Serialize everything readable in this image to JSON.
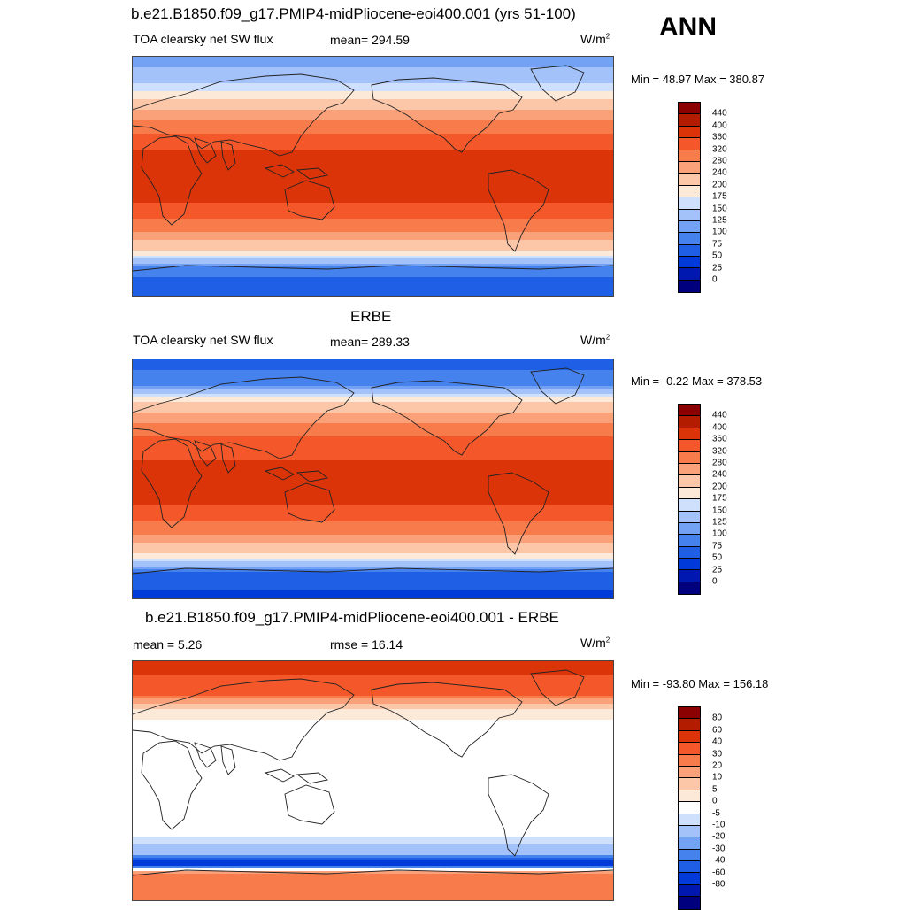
{
  "ann_label": "ANN",
  "palettes": {
    "flux": [
      "#00007f",
      "#0017b0",
      "#003ad9",
      "#1f5fe6",
      "#4682ee",
      "#73a2f5",
      "#a3c2fa",
      "#cfe0fc",
      "#fde9d8",
      "#fcc7a9",
      "#fba17a",
      "#f87b4c",
      "#f4582a",
      "#dc3409",
      "#b41c00",
      "#8b0000"
    ],
    "diff": [
      "#00007f",
      "#0017b0",
      "#003ad9",
      "#1f5fe6",
      "#4682ee",
      "#73a2f5",
      "#a3c2fa",
      "#cfe0fc",
      "#ffffff",
      "#fde9d8",
      "#fcc7a9",
      "#fba17a",
      "#f87b4c",
      "#f4582a",
      "#dc3409",
      "#b41c00",
      "#8b0000"
    ]
  },
  "panels": [
    {
      "title": "b.e21.B1850.f09_g17.PMIP4-midPliocene-eoi400.001 (yrs 51-100)",
      "field": "TOA clearsky net SW flux",
      "stat1": "mean= 294.59",
      "stat2": "",
      "units": "W/m",
      "units_exp": "2",
      "minmax": "Min =  48.97 Max = 380.87",
      "levels": [
        "440",
        "400",
        "360",
        "320",
        "280",
        "240",
        "200",
        "175",
        "150",
        "125",
        "100",
        "75",
        "50",
        "25",
        "0"
      ],
      "zonal_profile_wm2": [
        {
          "lat": -90,
          "value": 60
        },
        {
          "lat": -70,
          "value": 80
        },
        {
          "lat": -60,
          "value": 170
        },
        {
          "lat": -50,
          "value": 230
        },
        {
          "lat": -40,
          "value": 290
        },
        {
          "lat": -30,
          "value": 330
        },
        {
          "lat": -20,
          "value": 360
        },
        {
          "lat": 0,
          "value": 375
        },
        {
          "lat": 20,
          "value": 360
        },
        {
          "lat": 30,
          "value": 330
        },
        {
          "lat": 40,
          "value": 290
        },
        {
          "lat": 50,
          "value": 240
        },
        {
          "lat": 60,
          "value": 190
        },
        {
          "lat": 70,
          "value": 150
        },
        {
          "lat": 90,
          "value": 110
        }
      ]
    },
    {
      "title": "ERBE",
      "field": "TOA clearsky net SW flux",
      "stat1": "mean= 289.33",
      "stat2": "",
      "units": "W/m",
      "units_exp": "2",
      "minmax": "Min =  -0.22 Max = 378.53",
      "levels": [
        "440",
        "400",
        "360",
        "320",
        "280",
        "240",
        "200",
        "175",
        "150",
        "125",
        "100",
        "75",
        "50",
        "25",
        "0"
      ],
      "zonal_profile_wm2": [
        {
          "lat": -90,
          "value": 40
        },
        {
          "lat": -70,
          "value": 70
        },
        {
          "lat": -60,
          "value": 180
        },
        {
          "lat": -50,
          "value": 230
        },
        {
          "lat": -40,
          "value": 290
        },
        {
          "lat": -30,
          "value": 330
        },
        {
          "lat": -20,
          "value": 360
        },
        {
          "lat": 0,
          "value": 370
        },
        {
          "lat": 20,
          "value": 355
        },
        {
          "lat": 30,
          "value": 325
        },
        {
          "lat": 40,
          "value": 285
        },
        {
          "lat": 50,
          "value": 235
        },
        {
          "lat": 60,
          "value": 185
        },
        {
          "lat": 70,
          "value": 100
        },
        {
          "lat": 90,
          "value": 60
        }
      ]
    },
    {
      "title": "b.e21.B1850.f09_g17.PMIP4-midPliocene-eoi400.001 - ERBE",
      "field": "mean =   5.26",
      "stat1": "rmse =  16.14",
      "stat2": "",
      "units": "W/m",
      "units_exp": "2",
      "minmax": "Min = -93.80 Max = 156.18",
      "levels": [
        "80",
        "60",
        "40",
        "30",
        "20",
        "10",
        "5",
        "0",
        "-5",
        "-10",
        "-20",
        "-30",
        "-40",
        "-60",
        "-80"
      ],
      "zonal_profile_wm2": [
        {
          "lat": -90,
          "value": 30
        },
        {
          "lat": -70,
          "value": 40
        },
        {
          "lat": -62,
          "value": -60
        },
        {
          "lat": -55,
          "value": -10
        },
        {
          "lat": -40,
          "value": 2
        },
        {
          "lat": 0,
          "value": 2
        },
        {
          "lat": 40,
          "value": 2
        },
        {
          "lat": 55,
          "value": 10
        },
        {
          "lat": 65,
          "value": 40
        },
        {
          "lat": 80,
          "value": 60
        },
        {
          "lat": 90,
          "value": 60
        }
      ]
    }
  ]
}
